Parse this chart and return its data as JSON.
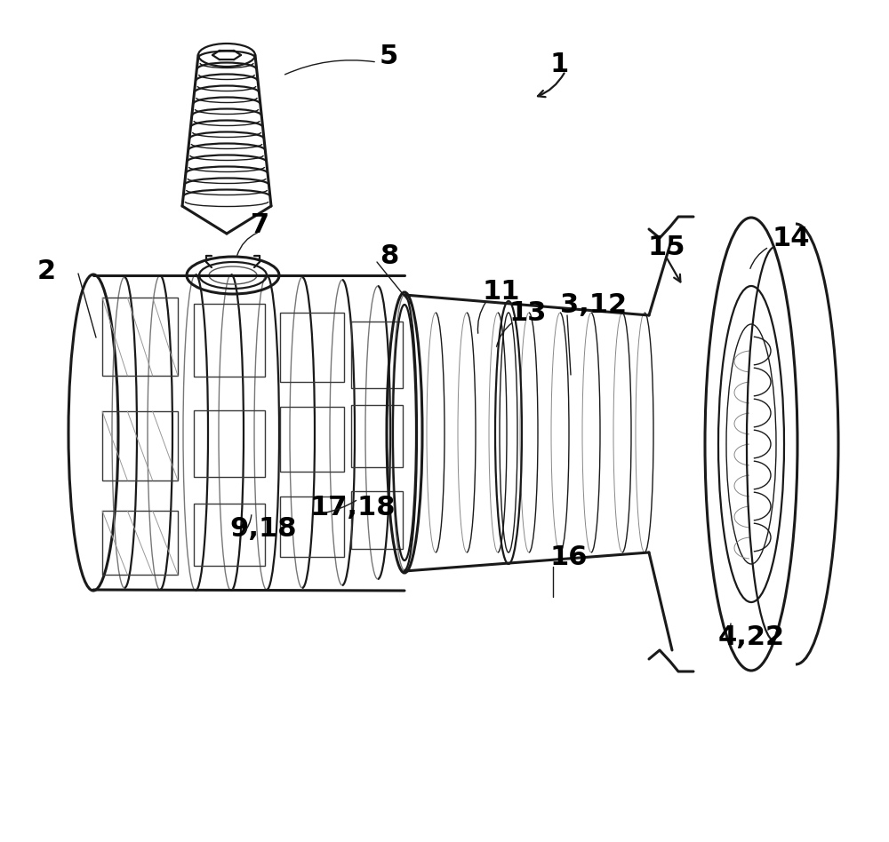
{
  "bg_color": "#ffffff",
  "line_color": "#1a1a1a",
  "label_color": "#000000",
  "figsize": [
    10.0,
    9.48
  ],
  "dpi": 100
}
